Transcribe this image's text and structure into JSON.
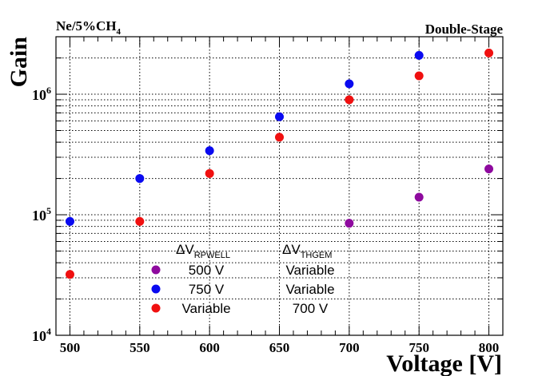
{
  "chart_data": {
    "type": "scatter",
    "gas_label": "Ne/5%CH",
    "gas_label_sub": "4",
    "corner_label": "Double-Stage",
    "xlabel": "Voltage [V]",
    "ylabel": "Gain",
    "xlim": [
      490,
      810
    ],
    "ylim": [
      10000,
      3000000
    ],
    "yscale": "log",
    "grid": true,
    "x_ticks": [
      500,
      550,
      600,
      650,
      700,
      750,
      800
    ],
    "y_ticks": [
      {
        "value": 10000,
        "base": "10",
        "exp": "4"
      },
      {
        "value": 100000,
        "base": "10",
        "exp": "5"
      },
      {
        "value": 1000000,
        "base": "10",
        "exp": "6"
      }
    ],
    "legend": {
      "position": "bottom-center",
      "col1_symbol": "ΔV",
      "col1_sub": "RPWELL",
      "col2_symbol": "ΔV",
      "col2_sub": "THGEM"
    },
    "series": [
      {
        "name": "500 V",
        "rpwell": "500 V",
        "thgem": "Variable",
        "color": "#8e0a9e",
        "x": [
          700,
          750,
          800
        ],
        "y": [
          85000,
          140000,
          240000
        ]
      },
      {
        "name": "750 V",
        "rpwell": "750 V",
        "thgem": "Variable",
        "color": "#0a0af0",
        "x": [
          500,
          550,
          600,
          650,
          700,
          750
        ],
        "y": [
          88000,
          200000,
          340000,
          650000,
          1220000,
          2100000
        ]
      },
      {
        "name": "Variable",
        "rpwell": "Variable",
        "thgem": "700 V",
        "color": "#f01010",
        "x": [
          500,
          550,
          600,
          650,
          700,
          750,
          800
        ],
        "y": [
          32000,
          88000,
          220000,
          440000,
          900000,
          1420000,
          2200000
        ]
      }
    ]
  }
}
